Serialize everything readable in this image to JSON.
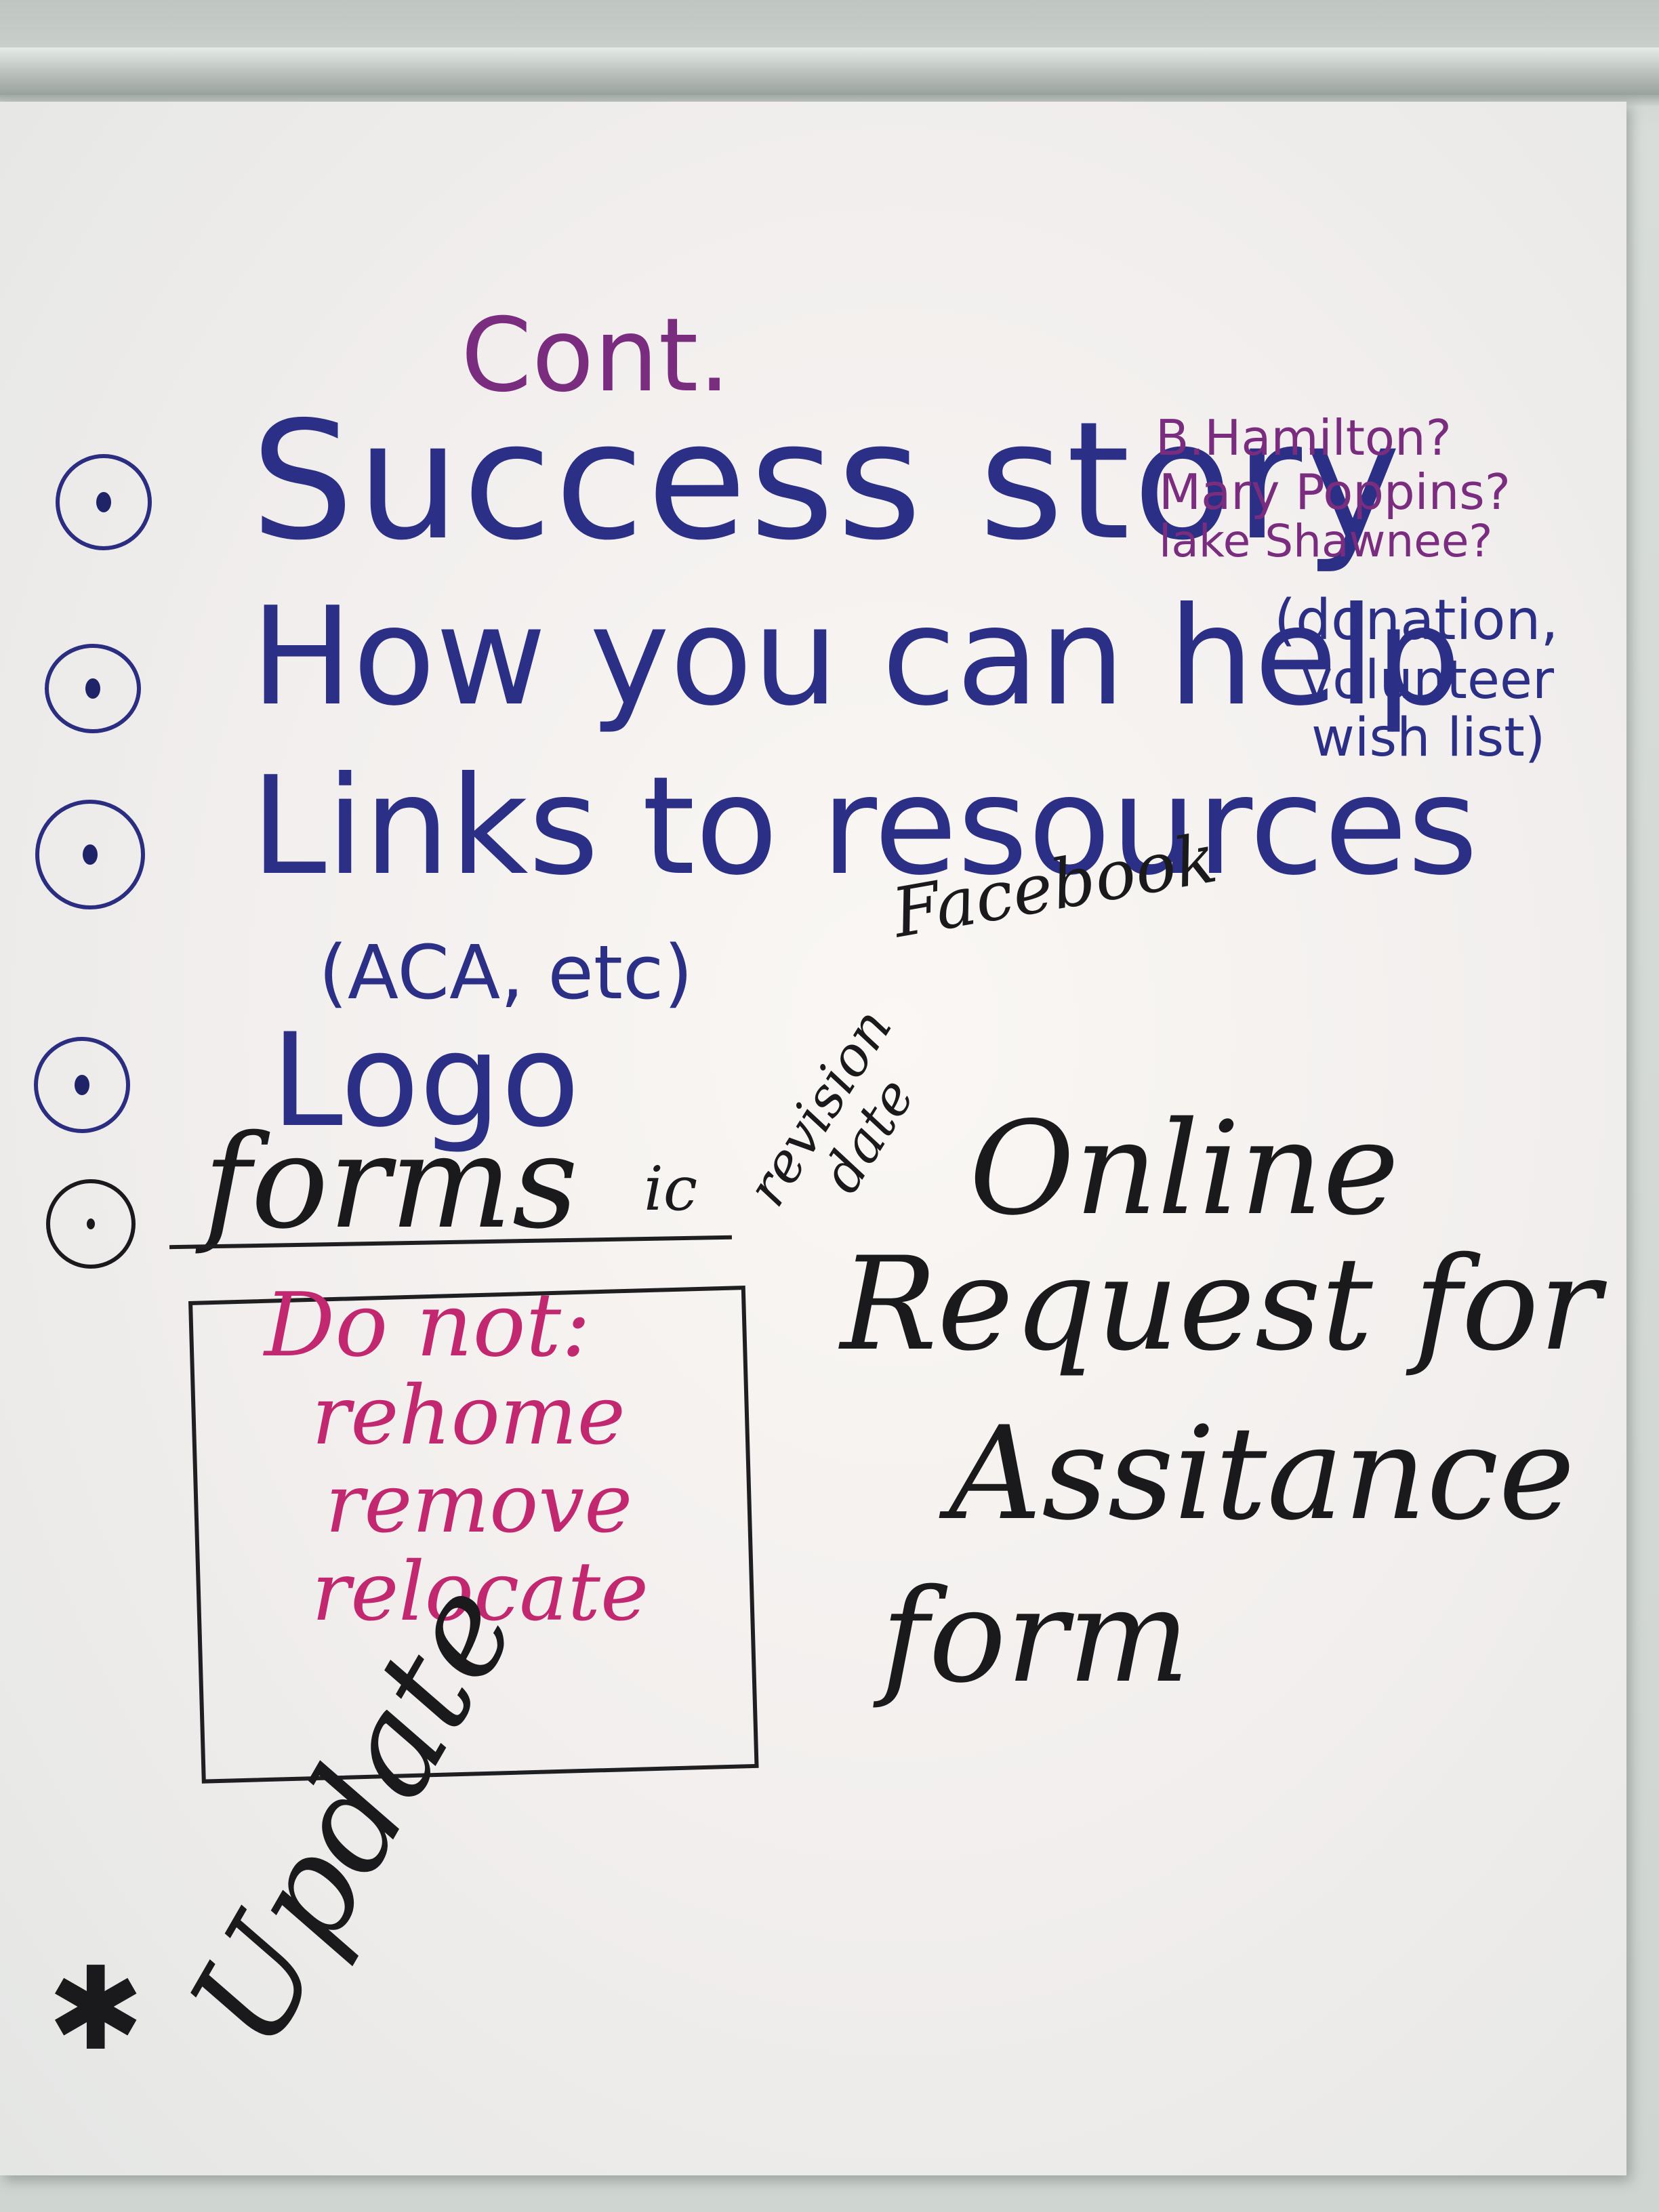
{
  "heading": "Cont.",
  "bullets": [
    {
      "text": "Success story"
    },
    {
      "text": "How you can help"
    },
    {
      "text": "Links to resources"
    },
    {
      "text": "Logo"
    },
    {
      "text": "forms"
    }
  ],
  "help_note": [
    "(donation,",
    "volunteer",
    "wish list)"
  ],
  "success_note": [
    "B.Hamilton?",
    "Mary Poppins?",
    "lake Shawnee?"
  ],
  "links_sub": "(ACA, etc)",
  "facebook": "Facebook",
  "revision_note": [
    "revision",
    "date"
  ],
  "forms_suffix": "ic",
  "box_lines": {
    "title": "Do not:",
    "items": [
      "rehome",
      "remove",
      "relocate"
    ]
  },
  "online_form": [
    "Online",
    "Request for",
    "Assitance",
    "form"
  ],
  "update": "Update",
  "update_star": "✱",
  "colors": {
    "blue_ink": "#2c2f86",
    "purple_ink": "#7a2c7e",
    "magenta_ink": "#c2286f",
    "black_ink": "#1a1a1c",
    "paper": "#f6f3f1"
  }
}
